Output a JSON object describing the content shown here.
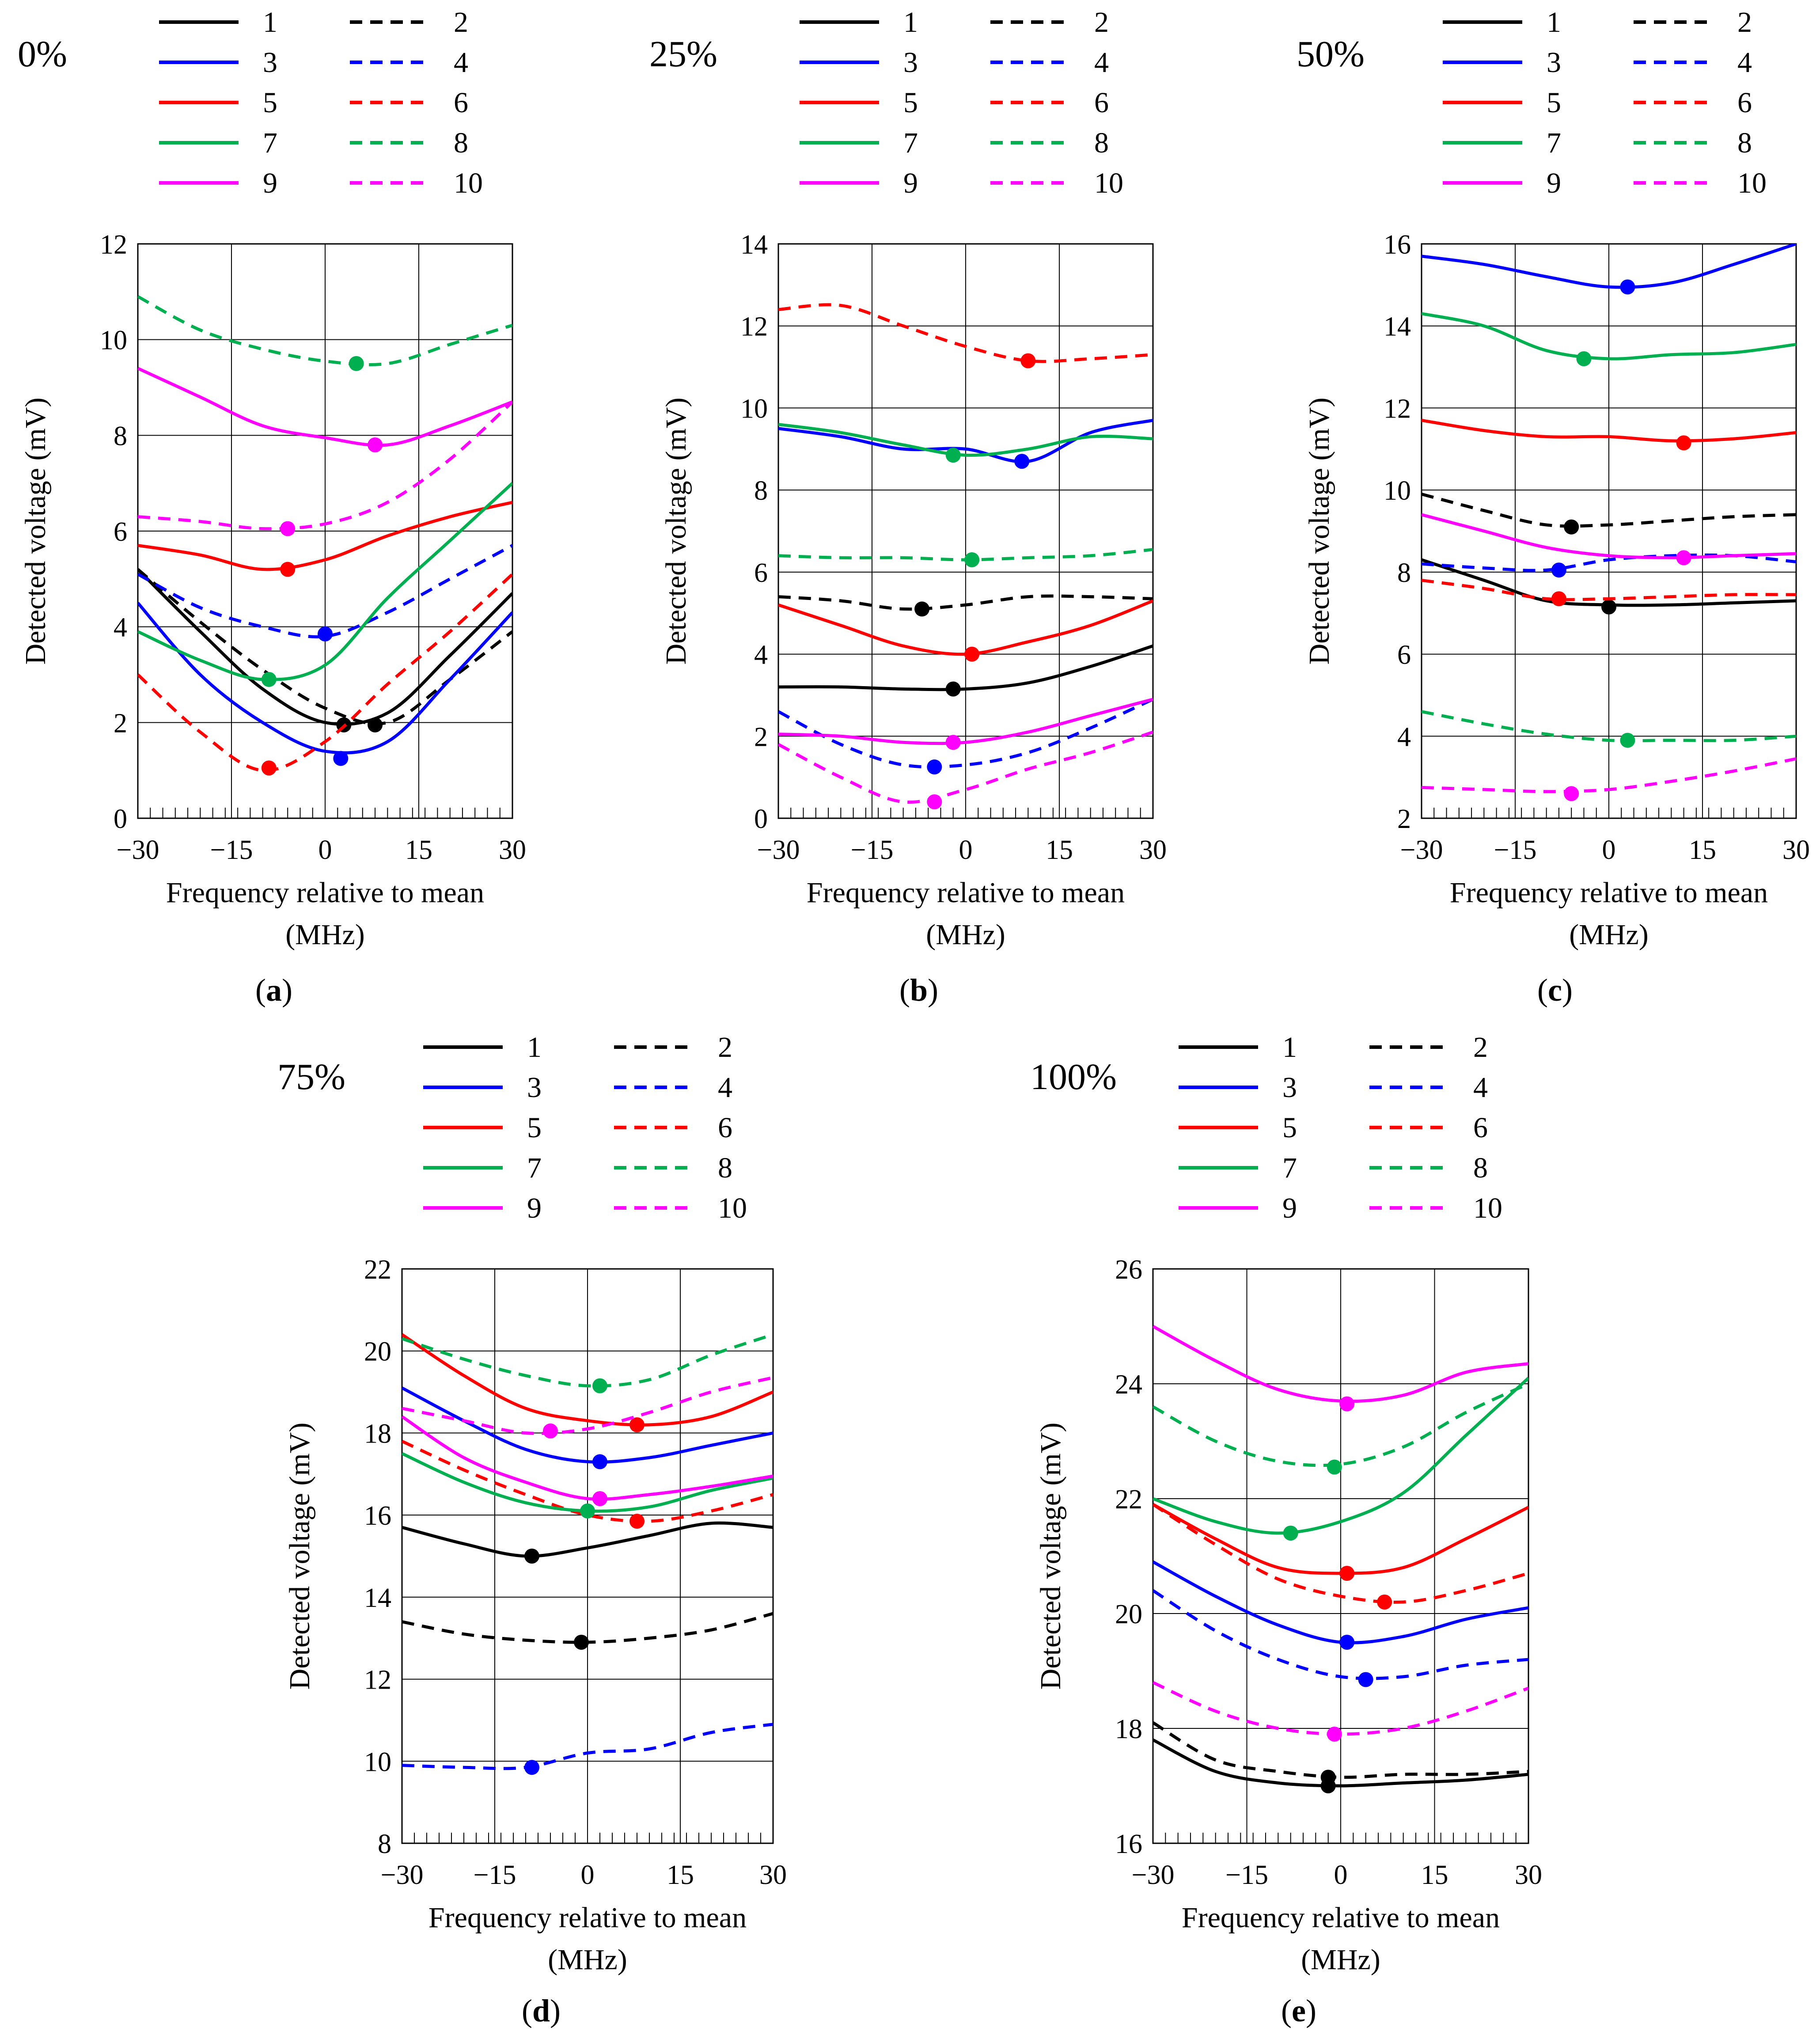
{
  "figure": {
    "x_axis_label_line1": "Frequency relative to mean",
    "x_axis_label_line2": "(MHz)",
    "y_axis_label": "Detected voltage (mV)"
  },
  "series_styles": [
    {
      "name": "1",
      "color": "#000000",
      "dash": "solid"
    },
    {
      "name": "2",
      "color": "#000000",
      "dash": "dashed"
    },
    {
      "name": "3",
      "color": "#0000FF",
      "dash": "solid"
    },
    {
      "name": "4",
      "color": "#0000FF",
      "dash": "dashed"
    },
    {
      "name": "5",
      "color": "#FF0000",
      "dash": "solid"
    },
    {
      "name": "6",
      "color": "#FF0000",
      "dash": "dashed"
    },
    {
      "name": "7",
      "color": "#00B050",
      "dash": "solid"
    },
    {
      "name": "8",
      "color": "#00B050",
      "dash": "dashed"
    },
    {
      "name": "9",
      "color": "#FF00FF",
      "dash": "solid"
    },
    {
      "name": "10",
      "color": "#FF00FF",
      "dash": "dashed"
    }
  ],
  "chart_data": [
    {
      "type": "line",
      "title": "0%",
      "panel_label": "a",
      "xlabel": "Frequency relative to mean (MHz)",
      "ylabel": "Detected voltage (mV)",
      "xlim": [
        -30,
        30
      ],
      "ylim": [
        0,
        12
      ],
      "xticks": [
        -30,
        -15,
        0,
        15,
        30
      ],
      "yticks": [
        0,
        2,
        4,
        6,
        8,
        10,
        12
      ],
      "x": [
        -30,
        -20,
        -10,
        0,
        10,
        20,
        30
      ],
      "series": [
        {
          "name": "1",
          "values": [
            5.2,
            3.9,
            2.7,
            2.0,
            2.2,
            3.4,
            4.7
          ],
          "marker": [
            3,
            1.95
          ]
        },
        {
          "name": "2",
          "values": [
            5.2,
            4.1,
            3.1,
            2.3,
            2.0,
            2.9,
            3.9
          ],
          "marker": [
            8,
            1.95
          ]
        },
        {
          "name": "3",
          "values": [
            4.5,
            3.0,
            2.0,
            1.4,
            1.6,
            2.9,
            4.3
          ],
          "marker": [
            2.5,
            1.25
          ]
        },
        {
          "name": "4",
          "values": [
            5.1,
            4.4,
            4.0,
            3.8,
            4.3,
            5.0,
            5.7
          ],
          "marker": [
            0,
            3.85
          ]
        },
        {
          "name": "5",
          "values": [
            5.7,
            5.5,
            5.2,
            5.4,
            5.9,
            6.3,
            6.6
          ],
          "marker": [
            -6,
            5.2
          ]
        },
        {
          "name": "6",
          "values": [
            3.0,
            1.8,
            1.0,
            1.6,
            2.8,
            3.9,
            5.1
          ],
          "marker": [
            -9,
            1.05
          ]
        },
        {
          "name": "7",
          "values": [
            3.9,
            3.3,
            2.9,
            3.2,
            4.6,
            5.8,
            7.0
          ],
          "marker": [
            -9,
            2.9
          ]
        },
        {
          "name": "8",
          "values": [
            10.9,
            10.2,
            9.8,
            9.55,
            9.5,
            9.9,
            10.3
          ],
          "marker": [
            5,
            9.5
          ]
        },
        {
          "name": "9",
          "values": [
            9.4,
            8.8,
            8.2,
            7.95,
            7.8,
            8.2,
            8.7
          ],
          "marker": [
            8,
            7.8
          ]
        },
        {
          "name": "10",
          "values": [
            6.3,
            6.2,
            6.05,
            6.15,
            6.6,
            7.5,
            8.7
          ],
          "marker": [
            -6,
            6.05
          ]
        }
      ]
    },
    {
      "type": "line",
      "title": "25%",
      "panel_label": "b",
      "xlabel": "Frequency relative to mean (MHz)",
      "ylabel": "Detected voltage (mV)",
      "xlim": [
        -30,
        30
      ],
      "ylim": [
        0,
        14
      ],
      "xticks": [
        -30,
        -15,
        0,
        15,
        30
      ],
      "yticks": [
        0,
        2,
        4,
        6,
        8,
        10,
        12,
        14
      ],
      "x": [
        -30,
        -20,
        -10,
        0,
        10,
        20,
        30
      ],
      "series": [
        {
          "name": "1",
          "values": [
            3.2,
            3.2,
            3.15,
            3.15,
            3.3,
            3.7,
            4.2
          ],
          "marker": [
            -2,
            3.15
          ]
        },
        {
          "name": "2",
          "values": [
            5.4,
            5.3,
            5.1,
            5.2,
            5.4,
            5.4,
            5.35
          ],
          "marker": [
            -7,
            5.1
          ]
        },
        {
          "name": "3",
          "values": [
            9.5,
            9.3,
            9.0,
            9.0,
            8.7,
            9.4,
            9.7
          ],
          "marker": [
            9,
            8.7
          ]
        },
        {
          "name": "4",
          "values": [
            2.6,
            1.8,
            1.3,
            1.3,
            1.6,
            2.2,
            2.9
          ],
          "marker": [
            -5,
            1.25
          ]
        },
        {
          "name": "5",
          "values": [
            5.2,
            4.7,
            4.2,
            4.0,
            4.3,
            4.7,
            5.3
          ],
          "marker": [
            1,
            4.0
          ]
        },
        {
          "name": "6",
          "values": [
            12.4,
            12.5,
            12.0,
            11.5,
            11.15,
            11.2,
            11.3
          ],
          "marker": [
            10,
            11.15
          ]
        },
        {
          "name": "7",
          "values": [
            9.6,
            9.4,
            9.1,
            8.85,
            9.0,
            9.3,
            9.25
          ],
          "marker": [
            -2,
            8.85
          ]
        },
        {
          "name": "8",
          "values": [
            6.4,
            6.35,
            6.35,
            6.3,
            6.35,
            6.4,
            6.55
          ],
          "marker": [
            1,
            6.3
          ]
        },
        {
          "name": "9",
          "values": [
            2.05,
            2.0,
            1.85,
            1.85,
            2.1,
            2.5,
            2.9
          ],
          "marker": [
            -2,
            1.85
          ]
        },
        {
          "name": "10",
          "values": [
            1.8,
            1.0,
            0.4,
            0.7,
            1.2,
            1.6,
            2.1
          ],
          "marker": [
            -5,
            0.4
          ]
        }
      ]
    },
    {
      "type": "line",
      "title": "50%",
      "panel_label": "c",
      "xlabel": "Frequency relative to mean (MHz)",
      "ylabel": "Detected voltage (mV)",
      "xlim": [
        -30,
        30
      ],
      "ylim": [
        2,
        16
      ],
      "xticks": [
        -30,
        -15,
        0,
        15,
        30
      ],
      "yticks": [
        2,
        4,
        6,
        8,
        10,
        12,
        14,
        16
      ],
      "x": [
        -30,
        -20,
        -10,
        0,
        10,
        20,
        30
      ],
      "series": [
        {
          "name": "1",
          "values": [
            8.3,
            7.8,
            7.3,
            7.2,
            7.2,
            7.25,
            7.3
          ],
          "marker": [
            0,
            7.15
          ]
        },
        {
          "name": "2",
          "values": [
            9.9,
            9.5,
            9.15,
            9.15,
            9.25,
            9.35,
            9.4
          ],
          "marker": [
            -6,
            9.1
          ]
        },
        {
          "name": "3",
          "values": [
            15.7,
            15.5,
            15.2,
            14.95,
            15.05,
            15.5,
            16.0
          ],
          "marker": [
            3,
            14.95
          ]
        },
        {
          "name": "4",
          "values": [
            8.2,
            8.1,
            8.05,
            8.3,
            8.4,
            8.4,
            8.25
          ],
          "marker": [
            -8,
            8.05
          ]
        },
        {
          "name": "5",
          "values": [
            11.7,
            11.45,
            11.3,
            11.3,
            11.2,
            11.25,
            11.4
          ],
          "marker": [
            12,
            11.15
          ]
        },
        {
          "name": "6",
          "values": [
            7.8,
            7.6,
            7.35,
            7.35,
            7.4,
            7.45,
            7.45
          ],
          "marker": [
            -8,
            7.35
          ]
        },
        {
          "name": "7",
          "values": [
            14.3,
            14.0,
            13.4,
            13.2,
            13.3,
            13.35,
            13.55
          ],
          "marker": [
            -4,
            13.2
          ]
        },
        {
          "name": "8",
          "values": [
            4.6,
            4.3,
            4.05,
            3.9,
            3.9,
            3.9,
            4.0
          ],
          "marker": [
            3,
            3.9
          ]
        },
        {
          "name": "9",
          "values": [
            9.4,
            9.0,
            8.6,
            8.4,
            8.35,
            8.4,
            8.45
          ],
          "marker": [
            12,
            8.35
          ]
        },
        {
          "name": "10",
          "values": [
            2.75,
            2.7,
            2.65,
            2.7,
            2.9,
            3.15,
            3.45
          ],
          "marker": [
            -6,
            2.6
          ]
        }
      ]
    },
    {
      "type": "line",
      "title": "75%",
      "panel_label": "d",
      "xlabel": "Frequency relative to mean (MHz)",
      "ylabel": "Detected voltage (mV)",
      "xlim": [
        -30,
        30
      ],
      "ylim": [
        8,
        22
      ],
      "xticks": [
        -30,
        -15,
        0,
        15,
        30
      ],
      "yticks": [
        8,
        10,
        12,
        14,
        16,
        18,
        20,
        22
      ],
      "x": [
        -30,
        -20,
        -10,
        0,
        10,
        20,
        30
      ],
      "series": [
        {
          "name": "1",
          "values": [
            15.7,
            15.3,
            15.0,
            15.2,
            15.5,
            15.8,
            15.7
          ],
          "marker": [
            -9,
            15.0
          ]
        },
        {
          "name": "2",
          "values": [
            13.4,
            13.1,
            12.95,
            12.9,
            13.0,
            13.2,
            13.6
          ],
          "marker": [
            -1,
            12.9
          ]
        },
        {
          "name": "3",
          "values": [
            19.1,
            18.3,
            17.6,
            17.3,
            17.4,
            17.7,
            18.0
          ],
          "marker": [
            2,
            17.3
          ]
        },
        {
          "name": "4",
          "values": [
            9.9,
            9.85,
            9.85,
            10.2,
            10.3,
            10.7,
            10.9
          ],
          "marker": [
            -9,
            9.85
          ]
        },
        {
          "name": "5",
          "values": [
            20.4,
            19.4,
            18.6,
            18.3,
            18.2,
            18.4,
            19.0
          ],
          "marker": [
            8,
            18.2
          ]
        },
        {
          "name": "6",
          "values": [
            17.8,
            17.1,
            16.5,
            16.0,
            15.85,
            16.1,
            16.5
          ],
          "marker": [
            8,
            15.85
          ]
        },
        {
          "name": "7",
          "values": [
            17.5,
            16.8,
            16.3,
            16.1,
            16.2,
            16.6,
            16.9
          ],
          "marker": [
            0,
            16.1
          ]
        },
        {
          "name": "8",
          "values": [
            20.3,
            19.8,
            19.4,
            19.15,
            19.3,
            19.9,
            20.4
          ],
          "marker": [
            2,
            19.15
          ]
        },
        {
          "name": "9",
          "values": [
            18.4,
            17.4,
            16.8,
            16.4,
            16.5,
            16.7,
            16.95
          ],
          "marker": [
            2,
            16.4
          ]
        },
        {
          "name": "10",
          "values": [
            18.6,
            18.3,
            18.0,
            18.1,
            18.5,
            19.0,
            19.35
          ],
          "marker": [
            -6,
            18.05
          ]
        }
      ]
    },
    {
      "type": "line",
      "title": "100%",
      "panel_label": "e",
      "xlabel": "Frequency relative to mean (MHz)",
      "ylabel": "Detected voltage (mV)",
      "xlim": [
        -30,
        30
      ],
      "ylim": [
        16,
        26
      ],
      "xticks": [
        -30,
        -15,
        0,
        15,
        30
      ],
      "yticks": [
        16,
        18,
        20,
        22,
        24,
        26
      ],
      "x": [
        -30,
        -20,
        -10,
        0,
        10,
        20,
        30
      ],
      "series": [
        {
          "name": "1",
          "values": [
            17.8,
            17.25,
            17.05,
            17.0,
            17.05,
            17.1,
            17.2
          ],
          "marker": [
            -2,
            17.0
          ]
        },
        {
          "name": "2",
          "values": [
            18.1,
            17.45,
            17.25,
            17.15,
            17.2,
            17.2,
            17.25
          ],
          "marker": [
            -2,
            17.15
          ]
        },
        {
          "name": "3",
          "values": [
            20.9,
            20.3,
            19.8,
            19.5,
            19.6,
            19.9,
            20.1
          ],
          "marker": [
            1,
            19.5
          ]
        },
        {
          "name": "4",
          "values": [
            20.4,
            19.7,
            19.2,
            18.9,
            18.9,
            19.1,
            19.2
          ],
          "marker": [
            4,
            18.85
          ]
        },
        {
          "name": "5",
          "values": [
            21.9,
            21.3,
            20.8,
            20.7,
            20.8,
            21.3,
            21.85
          ],
          "marker": [
            1,
            20.7
          ]
        },
        {
          "name": "6",
          "values": [
            21.9,
            21.2,
            20.6,
            20.3,
            20.2,
            20.4,
            20.7
          ],
          "marker": [
            7,
            20.2
          ]
        },
        {
          "name": "7",
          "values": [
            22.0,
            21.6,
            21.4,
            21.6,
            22.1,
            23.1,
            24.1
          ],
          "marker": [
            -8,
            21.4
          ]
        },
        {
          "name": "8",
          "values": [
            23.6,
            23.0,
            22.65,
            22.6,
            22.9,
            23.5,
            24.0
          ],
          "marker": [
            -1,
            22.55
          ]
        },
        {
          "name": "9",
          "values": [
            25.0,
            24.4,
            23.9,
            23.7,
            23.8,
            24.2,
            24.35
          ],
          "marker": [
            1,
            23.65
          ]
        },
        {
          "name": "10",
          "values": [
            18.8,
            18.3,
            18.0,
            17.9,
            18.0,
            18.3,
            18.7
          ],
          "marker": [
            -1,
            17.9
          ]
        }
      ]
    }
  ]
}
